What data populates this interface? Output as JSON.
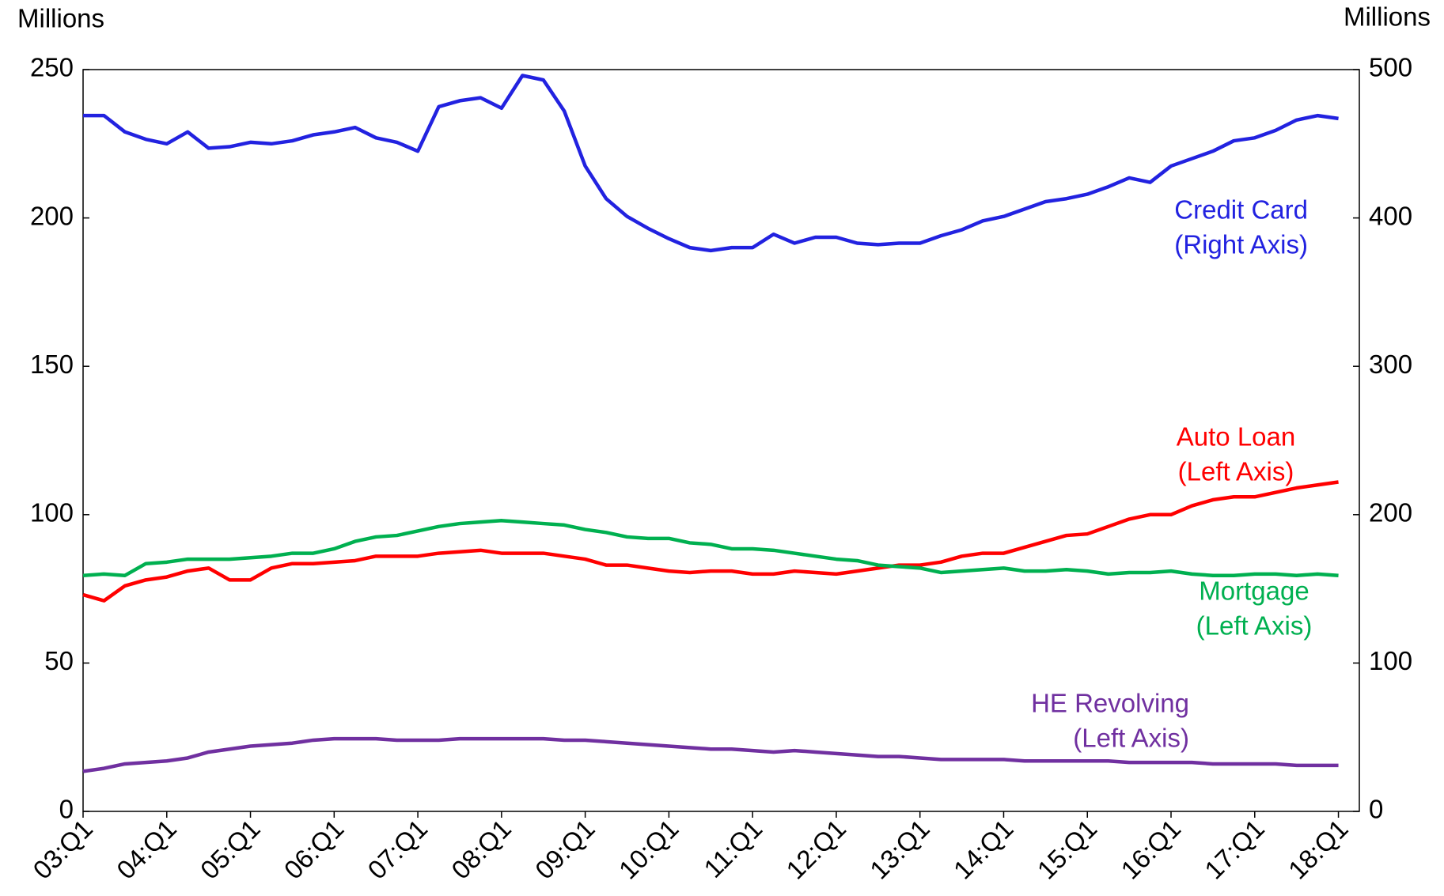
{
  "chart_data": {
    "type": "line",
    "ylabel": "Millions",
    "y2label": "Millions",
    "categories": [
      "03:Q1",
      null,
      null,
      null,
      "04:Q1",
      null,
      null,
      null,
      "05:Q1",
      null,
      null,
      null,
      "06:Q1",
      null,
      null,
      null,
      "07:Q1",
      null,
      null,
      null,
      "08:Q1",
      null,
      null,
      null,
      "09:Q1",
      null,
      null,
      null,
      "10:Q1",
      null,
      null,
      null,
      "11:Q1",
      null,
      null,
      null,
      "12:Q1",
      null,
      null,
      null,
      "13:Q1",
      null,
      null,
      null,
      "14:Q1",
      null,
      null,
      null,
      "15:Q1",
      null,
      null,
      null,
      "16:Q1",
      null,
      null,
      null,
      "17:Q1",
      null,
      null,
      null,
      "18:Q1"
    ],
    "ylim": [
      0,
      250
    ],
    "yticks": [
      0,
      50,
      100,
      150,
      200,
      250
    ],
    "y2lim": [
      0,
      500
    ],
    "y2ticks": [
      0,
      100,
      200,
      300,
      400,
      500
    ],
    "grid": false,
    "series": [
      {
        "name": "Credit Card",
        "note": "(Right Axis)",
        "color": "#2222e0",
        "axis": "y2",
        "values": [
          469,
          469,
          458,
          453,
          450,
          458,
          447,
          448,
          451,
          450,
          452,
          456,
          458,
          461,
          454,
          451,
          445,
          475,
          479,
          481,
          474,
          496,
          493,
          472,
          435,
          413,
          401,
          393,
          386,
          380,
          378,
          380,
          380,
          389,
          383,
          387,
          387,
          383,
          382,
          383,
          383,
          388,
          392,
          398,
          401,
          406,
          411,
          413,
          416,
          421,
          427,
          424,
          435,
          440,
          445,
          452,
          454,
          459,
          466,
          469,
          467
        ]
      },
      {
        "name": "Auto Loan",
        "note": "(Left Axis)",
        "color": "#ff0000",
        "values": [
          73,
          71,
          76,
          78,
          79,
          81,
          82,
          78,
          78,
          82,
          83.5,
          83.5,
          84,
          84.5,
          86,
          86,
          86,
          87,
          87.5,
          88,
          87,
          87,
          87,
          86,
          85,
          83,
          83,
          82,
          81,
          80.5,
          81,
          81,
          80,
          80,
          81,
          80.5,
          80,
          81,
          82,
          83,
          83,
          84,
          86,
          87,
          87,
          89,
          91,
          93,
          93.5,
          96,
          98.5,
          100,
          100,
          103,
          105,
          106,
          106,
          107.5,
          109,
          110,
          111
        ]
      },
      {
        "name": "Mortgage",
        "note": "(Left Axis)",
        "color": "#00b050",
        "values": [
          79.5,
          80,
          79.5,
          83.5,
          84,
          85,
          85,
          85,
          85.5,
          86,
          87,
          87,
          88.5,
          91,
          92.5,
          93,
          94.5,
          96,
          97,
          97.5,
          98,
          97.5,
          97,
          96.5,
          95,
          94,
          92.5,
          92,
          92,
          90.5,
          90,
          88.5,
          88.5,
          88,
          87,
          86,
          85,
          84.5,
          83,
          82.5,
          82,
          80.5,
          81,
          81.5,
          82,
          81,
          81,
          81.5,
          81,
          80,
          80.5,
          80.5,
          81,
          80,
          79.5,
          79.5,
          80,
          80,
          79.5,
          80,
          79.5
        ]
      },
      {
        "name": "HE Revolving",
        "note": "(Left Axis)",
        "color": "#7030a0",
        "values": [
          13.5,
          14.5,
          16,
          16.5,
          17,
          18,
          20,
          21,
          22,
          22.5,
          23,
          24,
          24.5,
          24.5,
          24.5,
          24,
          24,
          24,
          24.5,
          24.5,
          24.5,
          24.5,
          24.5,
          24,
          24,
          23.5,
          23,
          22.5,
          22,
          21.5,
          21,
          21,
          20.5,
          20,
          20.5,
          20,
          19.5,
          19,
          18.5,
          18.5,
          18,
          17.5,
          17.5,
          17.5,
          17.5,
          17,
          17,
          17,
          17,
          17,
          16.5,
          16.5,
          16.5,
          16.5,
          16,
          16,
          16,
          16,
          15.5,
          15.5,
          15.5
        ]
      }
    ]
  }
}
